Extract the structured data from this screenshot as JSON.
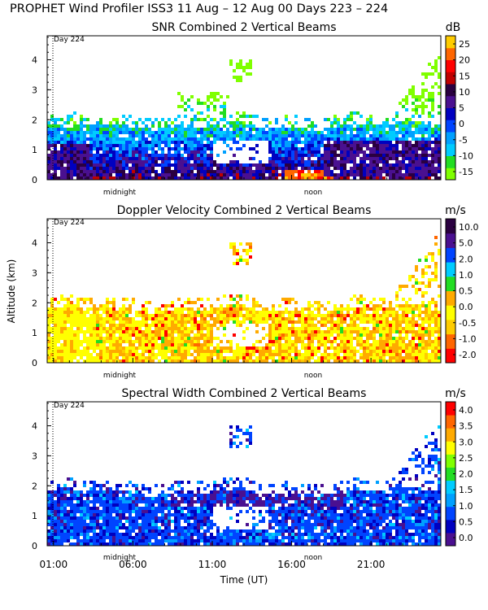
{
  "title": "PROPHET Wind Profiler ISS3  11 Aug – 12 Aug 00 Days 223 – 224",
  "colors": {
    "snr": [
      "#7fff00",
      "#22dd22",
      "#00ccff",
      "#00a0ff",
      "#0044ff",
      "#0000c0",
      "#4a1090",
      "#2a0040",
      "#c00000",
      "#ff0000",
      "#ff6600",
      "#ffcc00"
    ],
    "doppler": [
      "#ff0000",
      "#ff6600",
      "#ffcc00",
      "#ffff00",
      "#ffaa00",
      "#22dd22",
      "#00ccff",
      "#0044ff",
      "#4a1090",
      "#2a0040"
    ],
    "width": [
      "#4a1090",
      "#0000c0",
      "#0044ff",
      "#00a0ff",
      "#00ccff",
      "#22dd22",
      "#7fff00",
      "#ffff00",
      "#ffaa00",
      "#ff6600",
      "#ff0000"
    ]
  },
  "chart_data": [
    {
      "type": "heatmap",
      "title": "SNR Combined 2 Vertical Beams",
      "unit": "dB",
      "day_label": "Day 224",
      "ylabel": "",
      "ylim": [
        0,
        4.8
      ],
      "yticks": [
        "0",
        "1",
        "2",
        "3",
        "4"
      ],
      "x_annotations": [
        "midnight",
        "noon"
      ],
      "colorbar_ticks": [
        "-15",
        "-10",
        "-5",
        "0",
        "5",
        "10",
        "15",
        "20",
        "25"
      ],
      "xlabel": ""
    },
    {
      "type": "heatmap",
      "title": "Doppler Velocity Combined 2 Vertical Beams",
      "unit": "m/s",
      "day_label": "Day 224",
      "ylabel": "Altitude (km)",
      "ylim": [
        0,
        4.8
      ],
      "yticks": [
        "0",
        "1",
        "2",
        "3",
        "4"
      ],
      "x_annotations": [
        "midnight",
        "noon"
      ],
      "colorbar_ticks": [
        "-2.0",
        "-1.0",
        "-0.5",
        "0.0",
        "0.5",
        "1.0",
        "2.0",
        "5.0",
        "10.0"
      ],
      "xlabel": ""
    },
    {
      "type": "heatmap",
      "title": "Spectral Width Combined 2 Vertical Beams",
      "unit": "m/s",
      "day_label": "Day 224",
      "ylabel": "",
      "ylim": [
        0,
        4.8
      ],
      "yticks": [
        "0",
        "1",
        "2",
        "3",
        "4"
      ],
      "x_annotations": [
        "midnight",
        "noon"
      ],
      "colorbar_ticks": [
        "0.0",
        "0.5",
        "1.0",
        "1.5",
        "2.0",
        "2.5",
        "3.0",
        "3.5",
        "4.0"
      ],
      "xticks": [
        "01:00",
        "06:00",
        "11:00",
        "16:00",
        "21:00"
      ],
      "xlabel": "Time (UT)"
    }
  ]
}
